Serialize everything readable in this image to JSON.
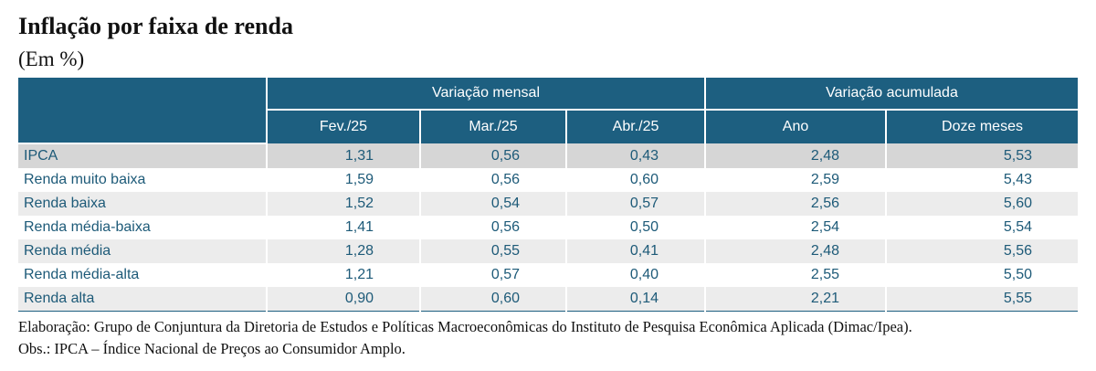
{
  "header": {
    "title": "Inflação por faixa de renda",
    "subtitle": "(Em %)"
  },
  "table": {
    "groups": [
      "Variação mensal",
      "Variação acumulada"
    ],
    "columns": [
      "Fev./25",
      "Mar./25",
      "Abr./25",
      "Ano",
      "Doze meses"
    ],
    "rows": [
      [
        "IPCA",
        "1,31",
        "0,56",
        "0,43",
        "2,48",
        "5,53"
      ],
      [
        "Renda muito baixa",
        "1,59",
        "0,56",
        "0,60",
        "2,59",
        "5,43"
      ],
      [
        "Renda baixa",
        "1,52",
        "0,54",
        "0,57",
        "2,56",
        "5,60"
      ],
      [
        "Renda média-baixa",
        "1,41",
        "0,56",
        "0,50",
        "2,54",
        "5,54"
      ],
      [
        "Renda média",
        "1,28",
        "0,55",
        "0,41",
        "2,48",
        "5,56"
      ],
      [
        "Renda média-alta",
        "1,21",
        "0,57",
        "0,40",
        "2,55",
        "5,50"
      ],
      [
        "Renda alta",
        "0,90",
        "0,60",
        "0,14",
        "2,21",
        "5,55"
      ]
    ]
  },
  "notes": [
    "Elaboração: Grupo de Conjuntura da Diretoria de Estudos e Políticas Macroeconômicas do Instituto de Pesquisa Econômica Aplicada (Dimac/Ipea).",
    "Obs.: IPCA – Índice Nacional de Preços ao Consumidor Amplo."
  ]
}
